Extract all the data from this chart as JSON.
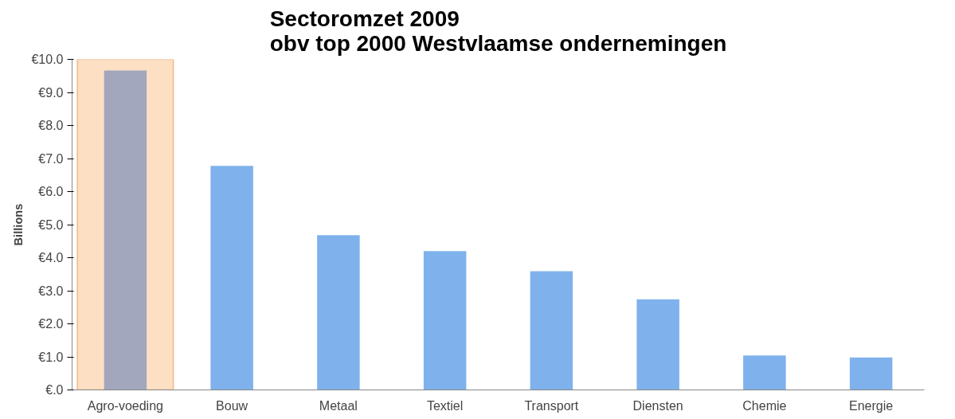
{
  "chart_data": {
    "type": "bar",
    "title": "Sectoromzet 2009\nobv top 2000 Westvlaamse ondernemingen",
    "ylabel": "Billions",
    "categories": [
      "Agro-voeding",
      "Bouw",
      "Metaal",
      "Textiel",
      "Transport",
      "Diensten",
      "Chemie",
      "Energie"
    ],
    "values": [
      9.66,
      6.78,
      4.68,
      4.2,
      3.59,
      2.74,
      1.04,
      0.98
    ],
    "colors": [
      "#a3a7bd",
      "#7fb2ec",
      "#7fb2ec",
      "#7fb2ec",
      "#7fb2ec",
      "#7fb2ec",
      "#7fb2ec",
      "#7fb2ec"
    ],
    "ylim": [
      0,
      10
    ],
    "yticks": [
      {
        "value": 0,
        "label": "€.0"
      },
      {
        "value": 1,
        "label": "€1.0"
      },
      {
        "value": 2,
        "label": "€2.0"
      },
      {
        "value": 3,
        "label": "€3.0"
      },
      {
        "value": 4,
        "label": "€4.0"
      },
      {
        "value": 5,
        "label": "€5.0"
      },
      {
        "value": 6,
        "label": "€6.0"
      },
      {
        "value": 7,
        "label": "€7.0"
      },
      {
        "value": 8,
        "label": "€8.0"
      },
      {
        "value": 9,
        "label": "€9.0"
      },
      {
        "value": 10,
        "label": "€10.0"
      }
    ],
    "bands": [
      {
        "axis": "x",
        "from": "Agro-voeding",
        "to": "Agro-voeding",
        "color": "#fde0c4"
      }
    ],
    "grid": false
  }
}
